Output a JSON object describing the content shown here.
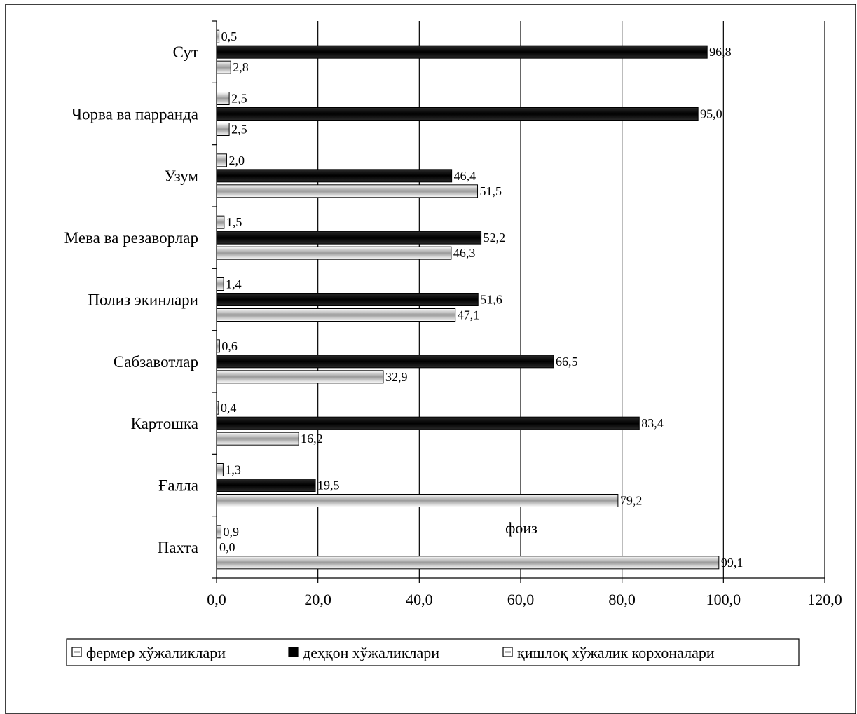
{
  "chart_data": {
    "type": "bar",
    "orientation": "horizontal",
    "categories": [
      "Пахта",
      "Ғалла",
      "Картошка",
      "Сабзавотлар",
      "Полиз экинлари",
      "Мева ва резаворлар",
      "Узум",
      "Чорва ва парранда",
      "Сут"
    ],
    "series": [
      {
        "name": "фермер хўжаликлари",
        "values": [
          0.9,
          1.3,
          0.4,
          0.6,
          1.4,
          1.5,
          2.0,
          2.5,
          0.5
        ],
        "labels": [
          "0,9",
          "1,3",
          "0,4",
          "0,6",
          "1,4",
          "1,5",
          "2,0",
          "2,5",
          "0,5"
        ],
        "fill": "#d9d9d9"
      },
      {
        "name": "деҳқон хўжаликлари",
        "values": [
          0.0,
          19.5,
          83.4,
          66.5,
          51.6,
          52.2,
          46.4,
          95.0,
          96.8
        ],
        "labels": [
          "0,0",
          "19,5",
          "83,4",
          "66,5",
          "51,6",
          "52,2",
          "46,4",
          "95,0",
          "96,8"
        ],
        "fill": "#000000"
      },
      {
        "name": "қишлоқ хўжалик корхоналари",
        "values": [
          99.1,
          79.2,
          16.2,
          32.9,
          47.1,
          46.3,
          51.5,
          2.5,
          2.8
        ],
        "labels": [
          "99,1",
          "79,2",
          "16,2",
          "32,9",
          "47,1",
          "46,3",
          "51,5",
          "2,5",
          "2,8"
        ],
        "fill": "#e6e6e6"
      }
    ],
    "xlim": [
      0,
      120
    ],
    "xticks": [
      "0,0",
      "20,0",
      "40,0",
      "60,0",
      "80,0",
      "100,0",
      "120,0"
    ],
    "xlabel": "фоиз",
    "grid": "vertical",
    "legend": "bottom"
  }
}
